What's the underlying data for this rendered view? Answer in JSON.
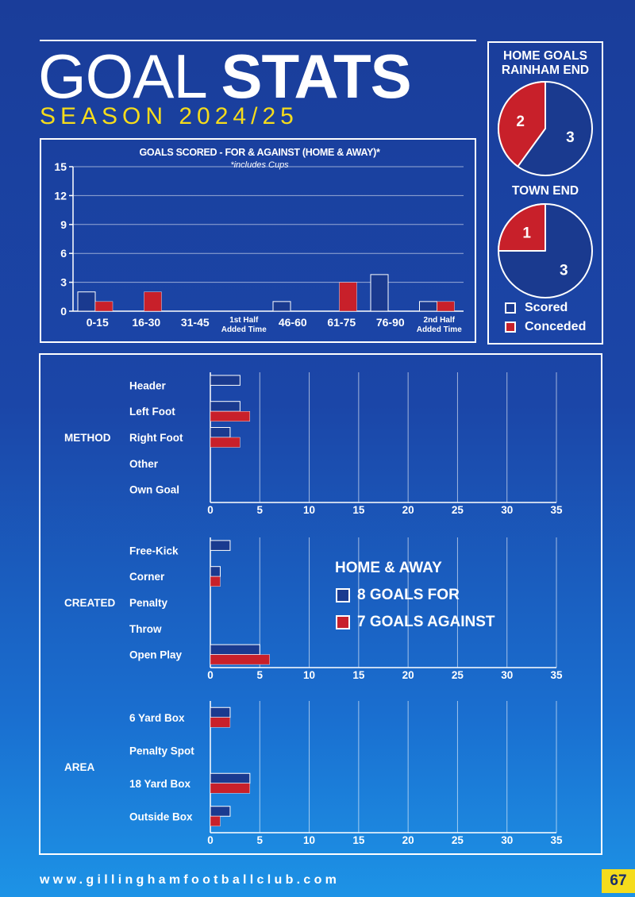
{
  "header": {
    "title_light": "GOAL",
    "title_bold": "STATS",
    "season": "SEASON 2024/25"
  },
  "colors": {
    "scored_fill": "#1a3a8f",
    "conceded_fill": "#c8202a",
    "season_text": "#f5dc1c",
    "page_number_bg": "#f5dc1c"
  },
  "pies": {
    "title_line1": "HOME GOALS",
    "title_line2": "RAINHAM END",
    "rainham_end": {
      "scored": 3,
      "conceded": 2
    },
    "town_end_title": "TOWN END",
    "town_end": {
      "scored": 3,
      "conceded": 1
    },
    "legend": {
      "scored": "Scored",
      "conceded": "Conceded"
    }
  },
  "chart_data": [
    {
      "type": "bar",
      "title": "GOALS SCORED - FOR & AGAINST (HOME & AWAY)*",
      "subtitle": "*includes Cups",
      "categories": [
        "0-15",
        "16-30",
        "31-45",
        "1st Half|Added Time",
        "46-60",
        "61-75",
        "76-90",
        "2nd Half|Added Time"
      ],
      "series": [
        {
          "name": "",
          "values": [
            2,
            0,
            0,
            0,
            1,
            0,
            3.8,
            1
          ]
        },
        {
          "name": "",
          "values": [
            1,
            2,
            0,
            0,
            0,
            3,
            0,
            1
          ]
        }
      ],
      "ylim": [
        0,
        15
      ],
      "yticks": [
        0,
        3,
        6,
        9,
        12,
        15
      ],
      "grid": true
    },
    {
      "type": "bar",
      "orientation": "horizontal",
      "legend": {
        "title": "HOME & AWAY",
        "for_label": "8 GOALS FOR",
        "against_label": "7 GOALS AGAINST"
      },
      "xlim": [
        0,
        35
      ],
      "xticks": [
        0,
        5,
        10,
        15,
        20,
        25,
        30,
        35
      ],
      "groups": [
        {
          "label": "METHOD",
          "categories": [
            "Header",
            "Left Foot",
            "Right Foot",
            "Other",
            "Own Goal"
          ],
          "for": [
            3,
            3,
            2,
            0,
            0
          ],
          "against": [
            0,
            4,
            3,
            0,
            0
          ]
        },
        {
          "label": "CREATED",
          "categories": [
            "Free-Kick",
            "Corner",
            "Penalty",
            "Throw",
            "Open Play"
          ],
          "for": [
            2,
            1,
            0,
            0,
            5
          ],
          "against": [
            0,
            1,
            0,
            0,
            6
          ]
        },
        {
          "label": "AREA",
          "categories": [
            "6 Yard Box",
            "Penalty Spot",
            "18 Yard Box",
            "Outside Box"
          ],
          "for": [
            2,
            0,
            4,
            2
          ],
          "against": [
            2,
            0,
            4,
            1
          ]
        }
      ]
    }
  ],
  "footer": {
    "url": "www.gillinghamfootballclub.com",
    "page_number": "67"
  }
}
